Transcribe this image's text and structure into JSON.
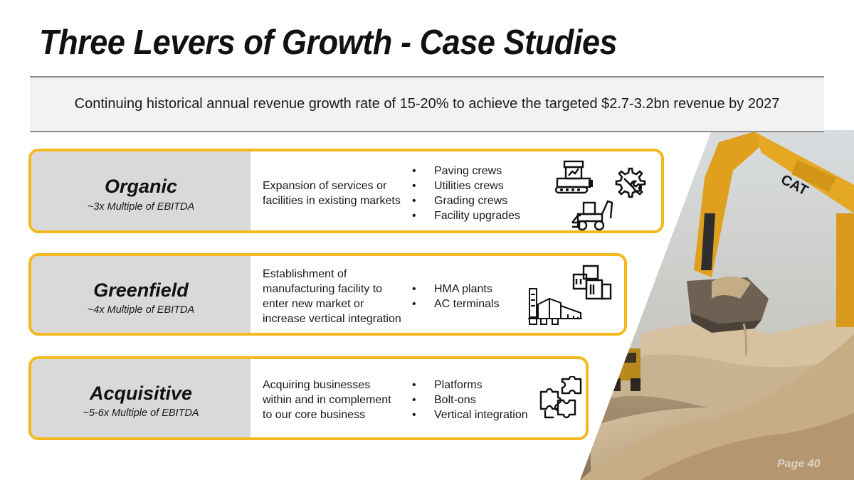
{
  "title": "Three Levers of Growth - Case Studies",
  "banner": "Continuing historical annual revenue growth rate of 15-20% to achieve the targeted $2.7-3.2bn revenue by 2027",
  "levers": [
    {
      "name": "Organic",
      "multiple": "~3x Multiple of EBITDA",
      "description": [
        "Expansion of services or",
        "facilities in existing markets"
      ],
      "bullets": [
        "Paving crews",
        "Utilities crews",
        "Grading crews",
        "Facility upgrades"
      ],
      "icons": [
        "paver-icon",
        "wrench-gear-icon",
        "backhoe-loader-icon"
      ]
    },
    {
      "name": "Greenfield",
      "multiple": "~4x Multiple of EBITDA",
      "description": [
        "Establishment of",
        "manufacturing facility to",
        "enter new market or",
        "increase vertical integration"
      ],
      "bullets": [
        "HMA plants",
        "AC terminals"
      ],
      "icons": [
        "storage-tanks-icon",
        "asphalt-plant-icon"
      ]
    },
    {
      "name": "Acquisitive",
      "multiple": "~5-6x Multiple of EBITDA",
      "description": [
        "Acquiring businesses",
        "within and in complement",
        "to our core business"
      ],
      "bullets": [
        "Platforms",
        "Bolt-ons",
        "Vertical integration"
      ],
      "icons": [
        "puzzle-pieces-icon"
      ]
    }
  ],
  "page_label": "Page 40",
  "colors": {
    "accent": "#f3b81e",
    "panel": "#d9d9d9",
    "banner_bg": "#f2f2f2",
    "excavator": "#e0a01e"
  }
}
